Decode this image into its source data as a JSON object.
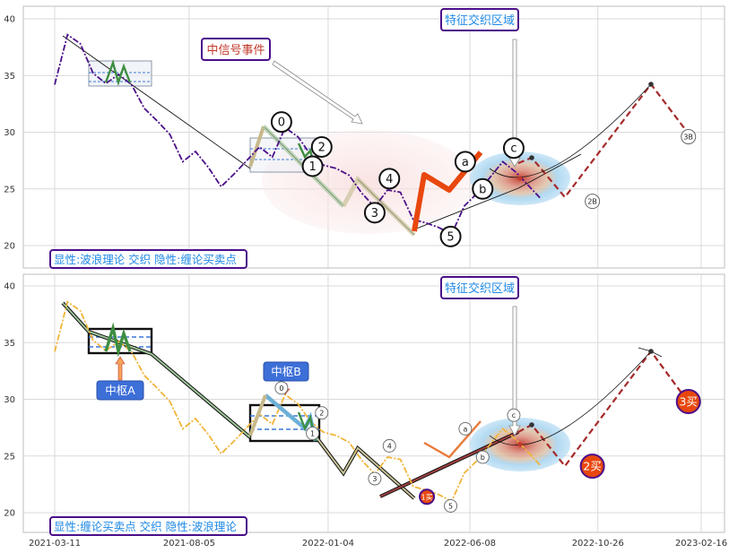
{
  "chart_data": [
    {
      "type": "line",
      "panel": "top",
      "yticks": [
        "40",
        "35",
        "30",
        "25",
        "20"
      ],
      "ylim": [
        19,
        41.5
      ],
      "grid": true,
      "legend_text": "显性:波浪理论 交织 隐性:缠论买卖点",
      "annotations": {
        "mid_signal": "中信号事件",
        "feature_zone": "特征交织区域"
      },
      "wave_labels": [
        {
          "label": "0",
          "x": "2021-11-14",
          "y": 30.9
        },
        {
          "label": "1",
          "x": "2021-12-18",
          "y": 27.0
        },
        {
          "label": "2",
          "x": "2021-12-28",
          "y": 28.7
        },
        {
          "label": "3",
          "x": "2022-02-24",
          "y": 22.9
        },
        {
          "label": "4",
          "x": "2022-03-12",
          "y": 25.9
        },
        {
          "label": "5",
          "x": "2022-05-18",
          "y": 20.8
        },
        {
          "label": "a",
          "x": "2022-06-03",
          "y": 27.4
        },
        {
          "label": "b",
          "x": "2022-06-22",
          "y": 25.0
        },
        {
          "label": "c",
          "x": "2022-07-26",
          "y": 28.6
        }
      ],
      "forecast_labels": [
        {
          "label": "2B",
          "x": "2022-10-20",
          "y": 23.9
        },
        {
          "label": "3B",
          "x": "2023-02-02",
          "y": 29.6
        }
      ],
      "price_series": {
        "x": [
          "2021-03-11",
          "2021-03-25",
          "2021-04-08",
          "2021-04-22",
          "2021-05-06",
          "2021-05-20",
          "2021-06-03",
          "2021-06-17",
          "2021-07-01",
          "2021-07-15",
          "2021-07-29",
          "2021-08-12",
          "2021-08-26",
          "2021-09-09",
          "2021-09-23",
          "2021-10-07",
          "2021-10-21",
          "2021-11-04",
          "2021-11-18",
          "2021-12-02",
          "2021-12-16",
          "2021-12-30",
          "2022-01-13",
          "2022-01-27",
          "2022-02-10",
          "2022-02-24",
          "2022-03-10",
          "2022-03-24",
          "2022-04-07",
          "2022-04-21",
          "2022-05-05",
          "2022-05-19",
          "2022-06-02",
          "2022-06-16",
          "2022-06-30",
          "2022-07-14",
          "2022-07-28",
          "2022-08-11",
          "2022-08-25"
        ],
        "y": [
          34.2,
          38.6,
          37.8,
          35.2,
          34.3,
          35.1,
          34.2,
          32.1,
          31.0,
          29.8,
          27.4,
          28.3,
          26.9,
          25.2,
          26.3,
          27.5,
          28.7,
          27.8,
          30.4,
          29.6,
          28.0,
          27.1,
          26.8,
          26.2,
          24.6,
          23.4,
          24.9,
          24.7,
          22.3,
          22.0,
          21.6,
          21.0,
          23.5,
          24.6,
          26.0,
          27.4,
          26.5,
          25.3,
          24.1
        ]
      },
      "forecast": {
        "x": [
          "2022-09-08",
          "2022-09-22",
          "2022-10-20",
          "2022-12-23",
          "2023-02-02"
        ],
        "y": [
          26.1,
          27.8,
          23.9,
          34.3,
          29.6
        ]
      }
    },
    {
      "type": "line",
      "panel": "bottom",
      "yticks": [
        "40",
        "35",
        "30",
        "25",
        "20"
      ],
      "xticks": [
        "2021-03-11",
        "2021-08-05",
        "2022-01-04",
        "2022-06-08",
        "2022-10-26",
        "2023-02-16"
      ],
      "ylim": [
        18.5,
        41.5
      ],
      "grid": true,
      "legend_text": "显性:缠论买卖点 交织 隐性:波浪理论",
      "annotations": {
        "feature_zone": "特征交织区域",
        "pivot_a": "中枢A",
        "pivot_b": "中枢B"
      },
      "wave_labels": [
        {
          "label": "0",
          "x": "2021-11-14",
          "y": 31.0
        },
        {
          "label": "1",
          "x": "2021-12-18",
          "y": 27.0
        },
        {
          "label": "2",
          "x": "2021-12-28",
          "y": 28.8
        },
        {
          "label": "3",
          "x": "2022-02-24",
          "y": 23.0
        },
        {
          "label": "4",
          "x": "2022-03-12",
          "y": 25.9
        },
        {
          "label": "5",
          "x": "2022-05-18",
          "y": 20.6
        },
        {
          "label": "a",
          "x": "2022-06-03",
          "y": 27.4
        },
        {
          "label": "b",
          "x": "2022-06-22",
          "y": 24.9
        },
        {
          "label": "c",
          "x": "2022-07-26",
          "y": 28.6
        }
      ],
      "buy_points": [
        {
          "label": "1买",
          "x": "2022-04-22",
          "y": 21.4
        },
        {
          "label": "2买",
          "x": "2022-10-20",
          "y": 24.1
        },
        {
          "label": "3买",
          "x": "2023-02-02",
          "y": 29.8
        }
      ],
      "price_series": {
        "x": [
          "2021-03-11",
          "2021-03-25",
          "2021-04-08",
          "2021-04-22",
          "2021-05-06",
          "2021-05-20",
          "2021-06-03",
          "2021-06-17",
          "2021-07-01",
          "2021-07-15",
          "2021-07-29",
          "2021-08-12",
          "2021-08-26",
          "2021-09-09",
          "2021-09-23",
          "2021-10-07",
          "2021-10-21",
          "2021-11-04",
          "2021-11-18",
          "2021-12-02",
          "2021-12-16",
          "2021-12-30",
          "2022-01-13",
          "2022-01-27",
          "2022-02-10",
          "2022-02-24",
          "2022-03-10",
          "2022-03-24",
          "2022-04-07",
          "2022-04-21",
          "2022-05-05",
          "2022-05-19",
          "2022-06-02",
          "2022-06-16",
          "2022-06-30",
          "2022-07-14",
          "2022-07-28",
          "2022-08-11",
          "2022-08-25"
        ],
        "y": [
          34.2,
          38.6,
          37.8,
          35.2,
          34.3,
          35.1,
          34.2,
          32.1,
          31.0,
          29.8,
          27.4,
          28.3,
          26.9,
          25.2,
          26.3,
          27.5,
          28.7,
          27.8,
          30.4,
          29.6,
          28.0,
          27.1,
          26.8,
          26.2,
          24.6,
          23.4,
          24.9,
          24.7,
          22.3,
          22.0,
          21.6,
          21.0,
          23.5,
          24.6,
          26.0,
          27.4,
          26.5,
          25.3,
          24.1
        ]
      },
      "forecast": {
        "x": [
          "2022-09-08",
          "2022-09-22",
          "2022-10-20",
          "2022-12-23",
          "2023-02-02"
        ],
        "y": [
          26.1,
          27.8,
          24.1,
          34.3,
          29.8
        ]
      }
    }
  ],
  "colors": {
    "top_price": "#4b0f8a",
    "bottom_price": "#f0b43a",
    "wave_orange": "#e8470e",
    "forecast": "#a52a2a",
    "legend_border": "#4b0f8a",
    "legend_text": "#1e88e5",
    "callout_fill": "#3d6fd8",
    "buy_fill": "#e8470e"
  }
}
